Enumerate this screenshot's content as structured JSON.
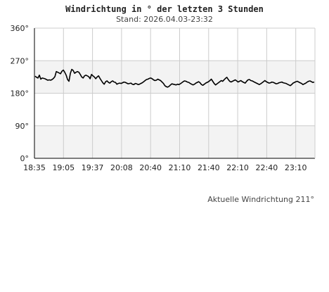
{
  "header": {
    "title": "Windrichtung in ° der letzten 3 Stunden",
    "subtitle": "Stand: 2026.04.03-23:32"
  },
  "caption": "Aktuelle Windrichtung 211°",
  "colors": {
    "line": "#000000",
    "band": "#f3f3f3",
    "grid": "#cccccc",
    "axis": "#000000"
  },
  "chart_data": {
    "type": "line",
    "title": "Windrichtung in ° der letzten 3 Stunden",
    "xlabel": "",
    "ylabel": "",
    "ylim": [
      0,
      360
    ],
    "yticks": [
      0,
      90,
      180,
      270,
      360
    ],
    "ytick_labels": [
      "0°",
      "90°",
      "180°",
      "270°",
      "360°"
    ],
    "xticks": [
      "18:35",
      "19:05",
      "19:37",
      "20:08",
      "20:40",
      "21:10",
      "21:40",
      "22:10",
      "22:40",
      "23:10"
    ],
    "x_range": [
      "18:35",
      "23:32"
    ],
    "grid": true,
    "shaded_bands": [
      [
        180,
        270
      ],
      [
        0,
        90
      ]
    ],
    "series": [
      {
        "values": [
          227,
          224,
          222,
          230,
          219,
          222,
          221,
          220,
          218,
          216,
          217,
          216,
          218,
          221,
          226,
          240,
          238,
          236,
          234,
          241,
          244,
          238,
          230,
          218,
          213,
          235,
          246,
          243,
          235,
          238,
          240,
          238,
          232,
          225,
          222,
          228,
          230,
          228,
          226,
          220,
          232,
          228,
          225,
          220,
          225,
          228,
          221,
          215,
          209,
          205,
          212,
          214,
          210,
          208,
          212,
          214,
          211,
          210,
          205,
          207,
          208,
          207,
          209,
          211,
          210,
          208,
          206,
          207,
          208,
          205,
          204,
          207,
          206,
          204,
          205,
          207,
          209,
          212,
          215,
          218,
          219,
          221,
          222,
          220,
          217,
          215,
          216,
          219,
          217,
          215,
          211,
          207,
          201,
          198,
          197,
          199,
          203,
          206,
          205,
          204,
          203,
          205,
          204,
          206,
          209,
          212,
          214,
          213,
          211,
          210,
          207,
          205,
          203,
          205,
          208,
          210,
          212,
          209,
          204,
          202,
          205,
          208,
          210,
          212,
          215,
          219,
          213,
          207,
          203,
          206,
          209,
          212,
          215,
          213,
          217,
          221,
          224,
          218,
          213,
          211,
          213,
          215,
          217,
          214,
          211,
          213,
          215,
          212,
          210,
          208,
          213,
          217,
          218,
          215,
          214,
          212,
          210,
          208,
          206,
          204,
          206,
          209,
          212,
          215,
          212,
          210,
          208,
          209,
          211,
          210,
          208,
          206,
          207,
          209,
          210,
          211,
          209,
          208,
          207,
          205,
          203,
          201,
          204,
          208,
          210,
          212,
          213,
          211,
          209,
          207,
          204,
          206,
          208,
          211,
          213,
          214,
          212,
          210,
          211
        ]
      }
    ]
  }
}
